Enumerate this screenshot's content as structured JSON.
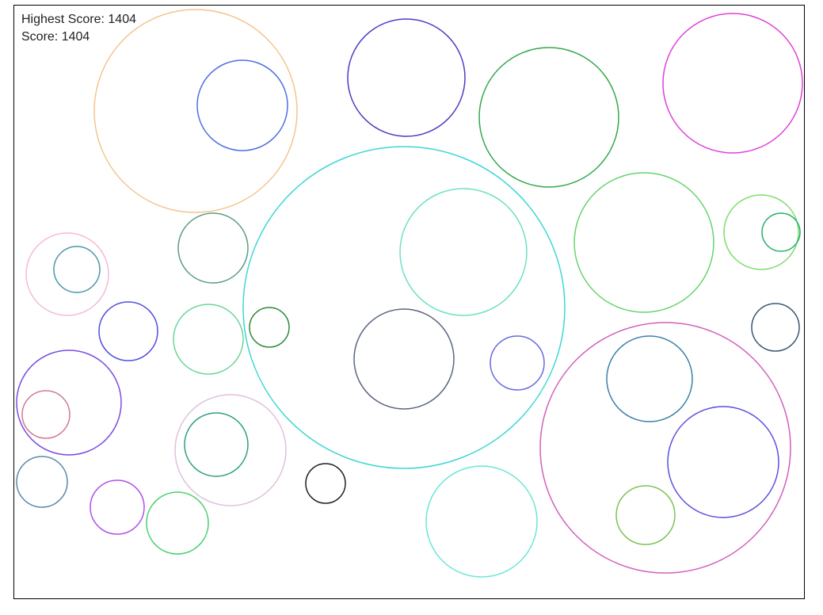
{
  "hud": {
    "highest_score_label": "Highest Score:",
    "highest_score_value": "1404",
    "score_label": "Score:",
    "score_value": "1404"
  },
  "bubbles": [
    {
      "color": "#f5c48e"
    },
    {
      "color": "#4f6fe0"
    },
    {
      "color": "#4a3fc4"
    },
    {
      "color": "#33a84a"
    },
    {
      "color": "#e040d8"
    },
    {
      "color": "#3fd6d6"
    },
    {
      "color": "#6ee0c6"
    },
    {
      "color": "#66d46e"
    },
    {
      "color": "#7edd6a"
    },
    {
      "color": "#22b06a"
    },
    {
      "color": "#5a9e82"
    },
    {
      "color": "#f5b8dc"
    },
    {
      "color": "#4a98a8"
    },
    {
      "color": "#5a6680"
    },
    {
      "color": "#4e4ee0"
    },
    {
      "color": "#6ad69a"
    },
    {
      "color": "#2e8a3a"
    },
    {
      "color": "#6a6ae0"
    },
    {
      "color": "#3c5870"
    },
    {
      "color": "#d060c0"
    },
    {
      "color": "#3a82a8"
    },
    {
      "color": "#5a50e0"
    },
    {
      "color": "#7a4ee0"
    },
    {
      "color": "#d07a98"
    },
    {
      "color": "#e0c0dc"
    },
    {
      "color": "#2ea080"
    },
    {
      "color": "#202020"
    },
    {
      "color": "#6ae6d6"
    },
    {
      "color": "#7ac454"
    },
    {
      "color": "#5a88a8"
    },
    {
      "color": "#b050e8"
    },
    {
      "color": "#46d066"
    }
  ]
}
